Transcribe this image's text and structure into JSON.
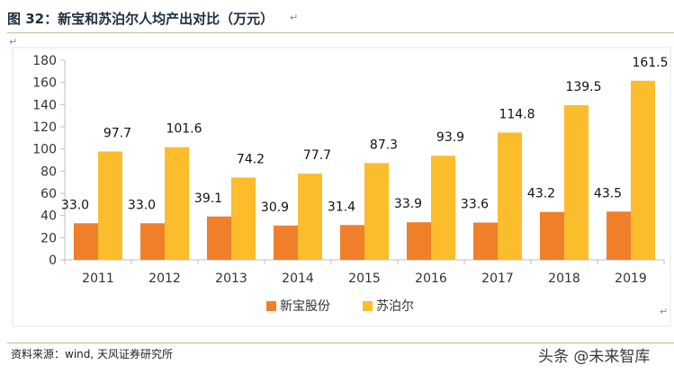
{
  "figure": {
    "title": "图 32：新宝和苏泊尔人均产出对比（万元）",
    "source": "资料来源：wind, 天风证券研究所",
    "watermark": "头条 @未来智库"
  },
  "colors": {
    "series_0": "#f07f2a",
    "series_1": "#fbbd2b",
    "title": "#1f2d3d",
    "grid": "#d9d9d9"
  },
  "chart_data": {
    "type": "bar",
    "title": "",
    "xlabel": "",
    "ylabel": "",
    "categories": [
      "2011",
      "2012",
      "2013",
      "2014",
      "2015",
      "2016",
      "2017",
      "2018",
      "2019"
    ],
    "series": [
      {
        "name": "新宝股份",
        "values": [
          33.0,
          33.0,
          39.1,
          30.9,
          31.4,
          33.9,
          33.6,
          43.2,
          43.5
        ]
      },
      {
        "name": "苏泊尔",
        "values": [
          97.7,
          101.6,
          74.2,
          77.7,
          87.3,
          93.9,
          114.8,
          139.5,
          161.5
        ]
      }
    ],
    "ylim": [
      0,
      180
    ],
    "yticks": [
      0,
      20,
      40,
      60,
      80,
      100,
      120,
      140,
      160,
      180
    ],
    "data_label_decimals": 1,
    "grid": false,
    "legend_position": "bottom-center"
  }
}
